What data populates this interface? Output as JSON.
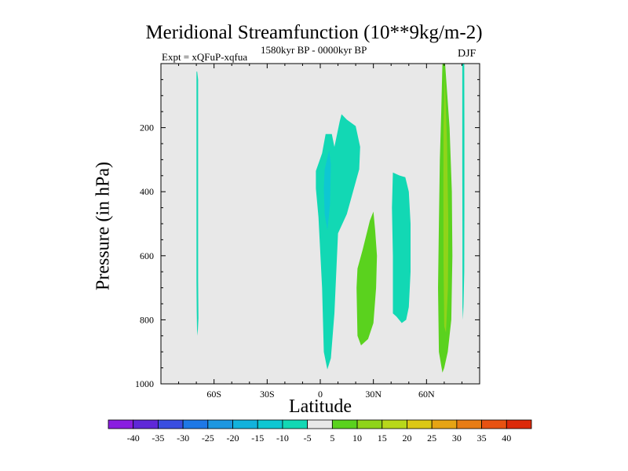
{
  "chart_data": {
    "type": "filled-contour",
    "title": "Meridional Streamfunction (10**9kg/m-2)",
    "subtitle_left": "Expt = xQFuP-xqfua",
    "subtitle_center": "1580kyr BP - 0000kyr BP",
    "subtitle_right": "DJF",
    "xlabel": "Latitude",
    "ylabel": "Pressure (in hPa)",
    "xlim": [
      -90,
      90
    ],
    "ylim": [
      1000,
      0
    ],
    "x_ticks": [
      {
        "value": -60,
        "label": "60S"
      },
      {
        "value": -30,
        "label": "30S"
      },
      {
        "value": 0,
        "label": "0"
      },
      {
        "value": 30,
        "label": "30N"
      },
      {
        "value": 60,
        "label": "60N"
      }
    ],
    "y_ticks": [
      {
        "value": 200,
        "label": "200"
      },
      {
        "value": 400,
        "label": "400"
      },
      {
        "value": 600,
        "label": "600"
      },
      {
        "value": 800,
        "label": "800"
      },
      {
        "value": 1000,
        "label": "1000"
      }
    ],
    "colorbar": {
      "labels": [
        "-40",
        "-35",
        "-30",
        "-25",
        "-20",
        "-15",
        "-10",
        "-5",
        "5",
        "10",
        "15",
        "20",
        "25",
        "30",
        "35",
        "40"
      ],
      "colors": [
        "#8a1ee0",
        "#5f28d8",
        "#3a4ee0",
        "#1e78e6",
        "#1d97e0",
        "#13b2dc",
        "#0ec7d2",
        "#12d8b4",
        "#e8e8e8",
        "#5ad21e",
        "#8fd41a",
        "#b8d81a",
        "#dcc814",
        "#e6a414",
        "#e87c14",
        "#e85212",
        "#dc2a0a"
      ]
    },
    "regions": [
      {
        "name": "southern-high-lat-strip",
        "value": -5,
        "color_index": 7,
        "points": [
          [
            -69.5,
            25
          ],
          [
            -69,
            50
          ],
          [
            -69,
            350
          ],
          [
            -69,
            680
          ],
          [
            -68.8,
            795
          ],
          [
            -69.3,
            850
          ],
          [
            -69.6,
            830
          ],
          [
            -69.8,
            770
          ],
          [
            -69.9,
            680
          ],
          [
            -69.9,
            350
          ],
          [
            -69.9,
            25
          ]
        ]
      },
      {
        "name": "tropical-negative-cell",
        "value": -5,
        "color_index": 7,
        "points": [
          [
            -2.5,
            335
          ],
          [
            1,
            280
          ],
          [
            3,
            220
          ],
          [
            6.5,
            220
          ],
          [
            8,
            260
          ],
          [
            11,
            180
          ],
          [
            12,
            158
          ],
          [
            15,
            175
          ],
          [
            20,
            195
          ],
          [
            22.5,
            260
          ],
          [
            22,
            330
          ],
          [
            15,
            470
          ],
          [
            10,
            530
          ],
          [
            8,
            780
          ],
          [
            6,
            920
          ],
          [
            4,
            955
          ],
          [
            2,
            900
          ],
          [
            1,
            700
          ],
          [
            -1,
            480
          ],
          [
            -2.5,
            390
          ]
        ]
      },
      {
        "name": "tropical-inner-core",
        "value": -10,
        "color_index": 6,
        "points": [
          [
            2.5,
            330
          ],
          [
            5,
            270
          ],
          [
            6,
            315
          ],
          [
            5.5,
            440
          ],
          [
            4,
            520
          ],
          [
            2.5,
            470
          ],
          [
            2,
            390
          ]
        ]
      },
      {
        "name": "northern-subtropical-positive",
        "value": 10,
        "color_index": 9,
        "points": [
          [
            30,
            462
          ],
          [
            31,
            520
          ],
          [
            32,
            600
          ],
          [
            31.5,
            700
          ],
          [
            30,
            810
          ],
          [
            27,
            860
          ],
          [
            23,
            880
          ],
          [
            21,
            850
          ],
          [
            20.5,
            700
          ],
          [
            21,
            640
          ],
          [
            24,
            580
          ],
          [
            28,
            490
          ]
        ]
      },
      {
        "name": "northern-midlat-negative",
        "value": -5,
        "color_index": 7,
        "points": [
          [
            41,
            340
          ],
          [
            45,
            350
          ],
          [
            48,
            355
          ],
          [
            50,
            400
          ],
          [
            51,
            500
          ],
          [
            51,
            650
          ],
          [
            50,
            760
          ],
          [
            48.5,
            800
          ],
          [
            46,
            810
          ],
          [
            43,
            790
          ],
          [
            41,
            780
          ],
          [
            41,
            600
          ],
          [
            40.5,
            450
          ]
        ]
      },
      {
        "name": "northern-highlat-positive",
        "value": 10,
        "color_index": 9,
        "points": [
          [
            69,
            0
          ],
          [
            70.5,
            0
          ],
          [
            73,
            200
          ],
          [
            74.3,
            400
          ],
          [
            74.6,
            600
          ],
          [
            74,
            800
          ],
          [
            72,
            900
          ],
          [
            70,
            950
          ],
          [
            69,
            965
          ],
          [
            67,
            900
          ],
          [
            66.5,
            700
          ],
          [
            67,
            500
          ],
          [
            67.5,
            300
          ],
          [
            68.3,
            150
          ]
        ]
      },
      {
        "name": "northern-highlat-inner",
        "value": 15,
        "color_index": 10,
        "points": [
          [
            70.3,
            40
          ],
          [
            71.6,
            250
          ],
          [
            72.3,
            500
          ],
          [
            72.1,
            700
          ],
          [
            71,
            840
          ],
          [
            70,
            820
          ],
          [
            69.6,
            620
          ],
          [
            69.5,
            380
          ],
          [
            69.6,
            200
          ]
        ]
      },
      {
        "name": "north-pole-strip",
        "value": -5,
        "color_index": 7,
        "points": [
          [
            80.2,
            0
          ],
          [
            81.3,
            0
          ],
          [
            81.4,
            200
          ],
          [
            81.4,
            450
          ],
          [
            81.3,
            650
          ],
          [
            80.9,
            750
          ],
          [
            80.6,
            800
          ],
          [
            80.3,
            760
          ],
          [
            80.3,
            550
          ],
          [
            80.2,
            300
          ]
        ]
      }
    ]
  }
}
